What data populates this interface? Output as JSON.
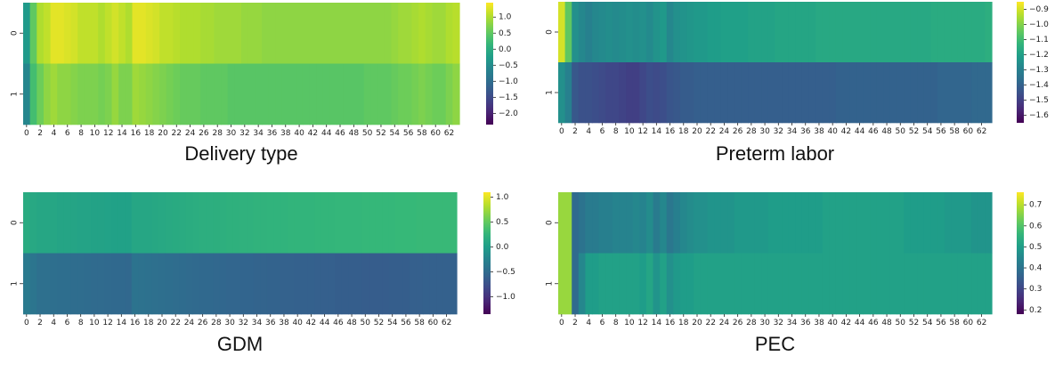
{
  "chart_data": [
    {
      "type": "heatmap",
      "title": "Delivery type",
      "rows": [
        "0",
        "1"
      ],
      "x_tick_labels": [
        "0",
        "2",
        "4",
        "6",
        "8",
        "10",
        "12",
        "14",
        "16",
        "18",
        "20",
        "22",
        "24",
        "26",
        "28",
        "30",
        "32",
        "34",
        "36",
        "38",
        "40",
        "42",
        "44",
        "46",
        "48",
        "50",
        "52",
        "54",
        "56",
        "58",
        "60",
        "62"
      ],
      "columns": 64,
      "colormap": "viridis",
      "vmin": -2.35,
      "vmax": 1.45,
      "colorbar_ticks": [
        1.0,
        0.5,
        0.0,
        -0.5,
        -1.0,
        -1.5,
        -2.0
      ],
      "colorbar_tick_labels": [
        "1.0",
        "0.5",
        "0.0",
        "−0.5",
        "−1.0",
        "−1.5",
        "−2.0"
      ],
      "values": [
        [
          -0.3,
          0.5,
          1.0,
          1.1,
          1.3,
          1.3,
          1.25,
          1.2,
          1.1,
          1.1,
          1.1,
          1.0,
          1.1,
          1.2,
          1.1,
          1.0,
          1.3,
          1.3,
          1.25,
          1.2,
          1.1,
          1.1,
          1.05,
          1.0,
          1.0,
          1.0,
          0.95,
          0.95,
          0.9,
          0.9,
          0.9,
          0.9,
          0.85,
          0.85,
          0.85,
          0.8,
          0.8,
          0.8,
          0.8,
          0.8,
          0.8,
          0.8,
          0.8,
          0.8,
          0.8,
          0.8,
          0.8,
          0.8,
          0.8,
          0.8,
          0.8,
          0.8,
          0.8,
          0.8,
          0.85,
          0.9,
          0.9,
          0.95,
          1.0,
          0.95,
          0.9,
          0.9,
          1.0,
          1.05
        ],
        [
          -0.6,
          0.3,
          0.6,
          0.8,
          0.9,
          0.8,
          0.8,
          0.75,
          0.7,
          0.7,
          0.7,
          0.65,
          0.7,
          0.85,
          0.7,
          0.7,
          0.9,
          0.85,
          0.8,
          0.75,
          0.7,
          0.65,
          0.6,
          0.55,
          0.55,
          0.55,
          0.5,
          0.5,
          0.5,
          0.5,
          0.45,
          0.45,
          0.45,
          0.45,
          0.45,
          0.45,
          0.45,
          0.45,
          0.45,
          0.45,
          0.45,
          0.45,
          0.45,
          0.45,
          0.45,
          0.45,
          0.45,
          0.45,
          0.45,
          0.45,
          0.5,
          0.5,
          0.5,
          0.5,
          0.55,
          0.6,
          0.6,
          0.65,
          0.7,
          0.65,
          0.6,
          0.6,
          0.7,
          0.8
        ]
      ]
    },
    {
      "type": "heatmap",
      "title": "Preterm labor",
      "rows": [
        "0",
        "1"
      ],
      "x_tick_labels": [
        "0",
        "2",
        "4",
        "6",
        "8",
        "10",
        "12",
        "14",
        "16",
        "18",
        "20",
        "22",
        "24",
        "26",
        "28",
        "30",
        "32",
        "34",
        "36",
        "38",
        "40",
        "42",
        "44",
        "46",
        "48",
        "50",
        "52",
        "54",
        "56",
        "58",
        "60",
        "62"
      ],
      "columns": 64,
      "colormap": "viridis",
      "vmin": -1.65,
      "vmax": -0.85,
      "colorbar_ticks": [
        -0.9,
        -1.0,
        -1.1,
        -1.2,
        -1.3,
        -1.4,
        -1.5,
        -1.6
      ],
      "colorbar_tick_labels": [
        "−0.9",
        "−1.0",
        "−1.1",
        "−1.2",
        "−1.3",
        "−1.4",
        "−1.5",
        "−1.6"
      ],
      "values": [
        [
          -0.9,
          -1.05,
          -1.25,
          -1.28,
          -1.3,
          -1.28,
          -1.27,
          -1.26,
          -1.27,
          -1.26,
          -1.25,
          -1.26,
          -1.25,
          -1.27,
          -1.24,
          -1.22,
          -1.28,
          -1.25,
          -1.24,
          -1.23,
          -1.22,
          -1.22,
          -1.21,
          -1.21,
          -1.2,
          -1.2,
          -1.2,
          -1.2,
          -1.19,
          -1.19,
          -1.19,
          -1.19,
          -1.18,
          -1.18,
          -1.18,
          -1.18,
          -1.18,
          -1.18,
          -1.17,
          -1.17,
          -1.17,
          -1.17,
          -1.17,
          -1.17,
          -1.17,
          -1.17,
          -1.17,
          -1.17,
          -1.17,
          -1.17,
          -1.17,
          -1.17,
          -1.17,
          -1.17,
          -1.17,
          -1.16,
          -1.16,
          -1.16,
          -1.16,
          -1.16,
          -1.16,
          -1.16,
          -1.16,
          -1.15
        ],
        [
          -1.25,
          -1.3,
          -1.43,
          -1.45,
          -1.45,
          -1.46,
          -1.47,
          -1.48,
          -1.48,
          -1.49,
          -1.5,
          -1.5,
          -1.48,
          -1.46,
          -1.47,
          -1.46,
          -1.44,
          -1.43,
          -1.42,
          -1.42,
          -1.41,
          -1.41,
          -1.41,
          -1.41,
          -1.41,
          -1.41,
          -1.41,
          -1.41,
          -1.41,
          -1.41,
          -1.41,
          -1.41,
          -1.41,
          -1.41,
          -1.41,
          -1.41,
          -1.41,
          -1.41,
          -1.41,
          -1.41,
          -1.41,
          -1.4,
          -1.4,
          -1.4,
          -1.4,
          -1.4,
          -1.4,
          -1.4,
          -1.4,
          -1.4,
          -1.4,
          -1.4,
          -1.4,
          -1.4,
          -1.4,
          -1.4,
          -1.39,
          -1.39,
          -1.39,
          -1.39,
          -1.39,
          -1.38,
          -1.38,
          -1.38
        ]
      ]
    },
    {
      "type": "heatmap",
      "title": "GDM",
      "rows": [
        "0",
        "1"
      ],
      "x_tick_labels": [
        "0",
        "2",
        "4",
        "6",
        "8",
        "10",
        "12",
        "14",
        "16",
        "18",
        "20",
        "22",
        "24",
        "26",
        "28",
        "30",
        "32",
        "34",
        "36",
        "38",
        "40",
        "42",
        "44",
        "46",
        "48",
        "50",
        "52",
        "54",
        "56",
        "58",
        "60",
        "62"
      ],
      "columns": 64,
      "colormap": "viridis",
      "vmin": -1.35,
      "vmax": 1.1,
      "colorbar_ticks": [
        1.0,
        0.5,
        0.0,
        -0.5,
        -1.0
      ],
      "colorbar_tick_labels": [
        "1.0",
        "0.5",
        "0.0",
        "−0.5",
        "−1.0"
      ],
      "values": [
        [
          0.15,
          0.12,
          0.1,
          0.1,
          0.1,
          0.08,
          0.08,
          0.08,
          0.07,
          0.07,
          0.06,
          0.06,
          0.05,
          0.04,
          0.04,
          0.04,
          0.1,
          0.1,
          0.1,
          0.11,
          0.12,
          0.13,
          0.14,
          0.15,
          0.16,
          0.17,
          0.18,
          0.18,
          0.19,
          0.2,
          0.21,
          0.21,
          0.22,
          0.22,
          0.23,
          0.23,
          0.24,
          0.24,
          0.24,
          0.25,
          0.25,
          0.25,
          0.25,
          0.26,
          0.26,
          0.26,
          0.27,
          0.27,
          0.27,
          0.27,
          0.28,
          0.28,
          0.28,
          0.28,
          0.28,
          0.29,
          0.29,
          0.29,
          0.3,
          0.3,
          0.3,
          0.3,
          0.3,
          0.3
        ],
        [
          -0.35,
          -0.4,
          -0.45,
          -0.45,
          -0.46,
          -0.47,
          -0.47,
          -0.48,
          -0.48,
          -0.49,
          -0.5,
          -0.5,
          -0.51,
          -0.52,
          -0.52,
          -0.53,
          -0.42,
          -0.43,
          -0.44,
          -0.45,
          -0.46,
          -0.47,
          -0.48,
          -0.49,
          -0.5,
          -0.51,
          -0.52,
          -0.52,
          -0.53,
          -0.54,
          -0.55,
          -0.55,
          -0.56,
          -0.56,
          -0.57,
          -0.57,
          -0.58,
          -0.58,
          -0.59,
          -0.59,
          -0.6,
          -0.6,
          -0.6,
          -0.61,
          -0.61,
          -0.61,
          -0.62,
          -0.62,
          -0.62,
          -0.62,
          -0.63,
          -0.63,
          -0.63,
          -0.63,
          -0.62,
          -0.62,
          -0.62,
          -0.61,
          -0.61,
          -0.6,
          -0.6,
          -0.6,
          -0.6,
          -0.59
        ]
      ]
    },
    {
      "type": "heatmap",
      "title": "PEC",
      "rows": [
        "0",
        "1"
      ],
      "x_tick_labels": [
        "0",
        "2",
        "4",
        "6",
        "8",
        "10",
        "12",
        "14",
        "16",
        "18",
        "20",
        "22",
        "24",
        "26",
        "28",
        "30",
        "32",
        "34",
        "36",
        "38",
        "40",
        "42",
        "44",
        "46",
        "48",
        "50",
        "52",
        "54",
        "56",
        "58",
        "60",
        "62"
      ],
      "columns": 64,
      "colormap": "viridis",
      "vmin": 0.18,
      "vmax": 0.76,
      "colorbar_ticks": [
        0.7,
        0.6,
        0.5,
        0.4,
        0.3,
        0.2
      ],
      "colorbar_tick_labels": [
        "0.7",
        "0.6",
        "0.5",
        "0.4",
        "0.3",
        "0.2"
      ],
      "values": [
        [
          0.67,
          0.67,
          0.38,
          0.4,
          0.42,
          0.42,
          0.43,
          0.43,
          0.44,
          0.44,
          0.44,
          0.45,
          0.44,
          0.46,
          0.42,
          0.45,
          0.41,
          0.43,
          0.45,
          0.46,
          0.47,
          0.47,
          0.48,
          0.48,
          0.48,
          0.48,
          0.49,
          0.49,
          0.49,
          0.49,
          0.49,
          0.5,
          0.5,
          0.5,
          0.5,
          0.5,
          0.5,
          0.5,
          0.5,
          0.51,
          0.51,
          0.51,
          0.51,
          0.51,
          0.51,
          0.51,
          0.51,
          0.51,
          0.51,
          0.51,
          0.51,
          0.5,
          0.5,
          0.5,
          0.5,
          0.5,
          0.5,
          0.49,
          0.49,
          0.49,
          0.49,
          0.48,
          0.48,
          0.48
        ],
        [
          0.67,
          0.67,
          0.38,
          0.45,
          0.5,
          0.5,
          0.51,
          0.51,
          0.51,
          0.51,
          0.51,
          0.51,
          0.5,
          0.52,
          0.48,
          0.51,
          0.47,
          0.49,
          0.5,
          0.5,
          0.51,
          0.51,
          0.51,
          0.51,
          0.51,
          0.51,
          0.51,
          0.51,
          0.51,
          0.51,
          0.51,
          0.51,
          0.51,
          0.51,
          0.51,
          0.51,
          0.51,
          0.51,
          0.51,
          0.51,
          0.51,
          0.51,
          0.51,
          0.51,
          0.51,
          0.51,
          0.51,
          0.51,
          0.51,
          0.51,
          0.51,
          0.51,
          0.51,
          0.51,
          0.51,
          0.51,
          0.51,
          0.51,
          0.51,
          0.51,
          0.51,
          0.51,
          0.51,
          0.51
        ]
      ]
    }
  ]
}
